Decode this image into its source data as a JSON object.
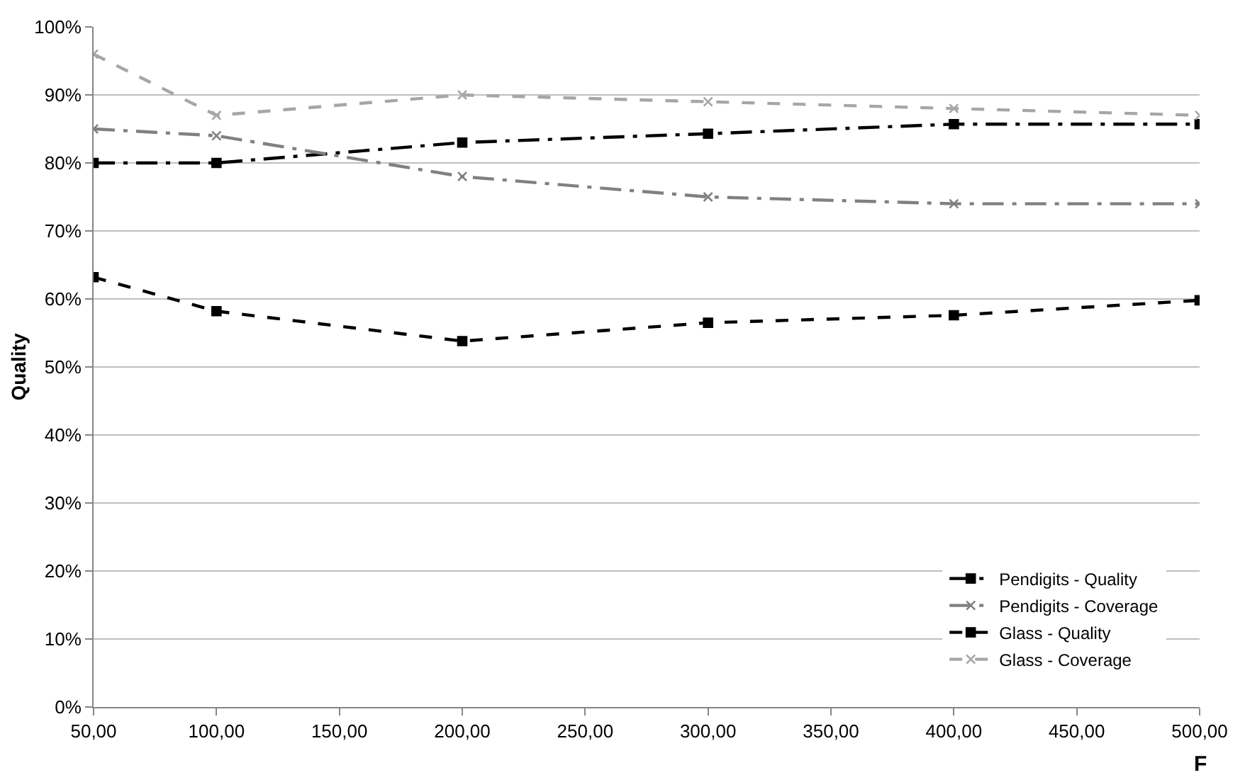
{
  "chart_data": {
    "type": "line",
    "xlabel": "F",
    "ylabel": "Quality",
    "x": [
      50,
      100,
      200,
      300,
      400,
      500
    ],
    "series": [
      {
        "name": "Pendigits - Quality",
        "color": "#000000",
        "line_style": "dashdot",
        "marker": "square",
        "values": [
          80,
          80,
          83,
          84.3,
          85.7,
          85.7
        ]
      },
      {
        "name": "Pendigits - Coverage",
        "color": "#808080",
        "line_style": "dashdot",
        "marker": "cross",
        "values": [
          85,
          84,
          78,
          75,
          74,
          74
        ]
      },
      {
        "name": "Glass - Quality",
        "color": "#000000",
        "line_style": "dashed",
        "marker": "square",
        "values": [
          63.2,
          58.2,
          53.8,
          56.5,
          57.6,
          59.8
        ]
      },
      {
        "name": "Glass - Coverage",
        "color": "#a6a6a6",
        "line_style": "dashed",
        "marker": "cross",
        "values": [
          96,
          87,
          90,
          89,
          88,
          87
        ]
      }
    ],
    "xlim": [
      50,
      500
    ],
    "xticks": [
      {
        "value": 50,
        "label": "50,00"
      },
      {
        "value": 100,
        "label": "100,00"
      },
      {
        "value": 150,
        "label": "150,00"
      },
      {
        "value": 200,
        "label": "200,00"
      },
      {
        "value": 250,
        "label": "250,00"
      },
      {
        "value": 300,
        "label": "300,00"
      },
      {
        "value": 350,
        "label": "350,00"
      },
      {
        "value": 400,
        "label": "400,00"
      },
      {
        "value": 450,
        "label": "450,00"
      },
      {
        "value": 500,
        "label": "500,00"
      }
    ],
    "ylim": [
      0,
      100
    ],
    "yticks": [
      {
        "value": 0,
        "label": "0%"
      },
      {
        "value": 10,
        "label": "10%"
      },
      {
        "value": 20,
        "label": "20%"
      },
      {
        "value": 30,
        "label": "30%"
      },
      {
        "value": 40,
        "label": "40%"
      },
      {
        "value": 50,
        "label": "50%"
      },
      {
        "value": 60,
        "label": "60%"
      },
      {
        "value": 70,
        "label": "70%"
      },
      {
        "value": 80,
        "label": "80%"
      },
      {
        "value": 90,
        "label": "90%"
      },
      {
        "value": 100,
        "label": "100%"
      }
    ],
    "grid": "y",
    "legend": "bottom right"
  }
}
